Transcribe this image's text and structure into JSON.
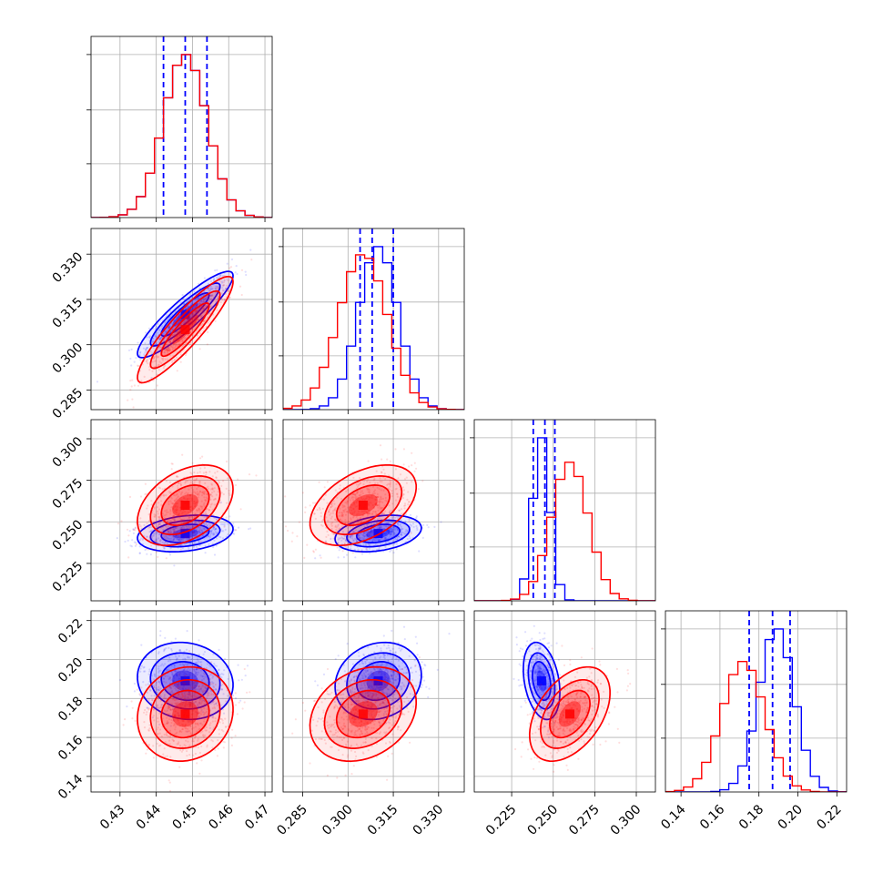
{
  "colors": {
    "blue": "#0000ff",
    "red": "#ff0000",
    "grid": "#b0b0b0"
  },
  "chart_data": {
    "type": "corner",
    "title": "",
    "grid": true,
    "parameters": [
      {
        "range": [
          0.422,
          0.472
        ],
        "ticks": [
          0.43,
          0.44,
          0.45,
          0.46,
          0.47
        ],
        "tick_labels": [
          "0.43",
          "0.44",
          "0.45",
          "0.46",
          "0.47"
        ]
      },
      {
        "range": [
          0.2785,
          0.3385
        ],
        "ticks": [
          0.285,
          0.3,
          0.315,
          0.33
        ],
        "tick_labels": [
          "0.285",
          "0.300",
          "0.315",
          "0.330"
        ]
      },
      {
        "range": [
          0.2025,
          0.3115
        ],
        "ticks": [
          0.225,
          0.25,
          0.275,
          0.3
        ],
        "tick_labels": [
          "0.225",
          "0.250",
          "0.275",
          "0.300"
        ]
      },
      {
        "range": [
          0.132,
          0.225
        ],
        "ticks": [
          0.14,
          0.16,
          0.18,
          0.2,
          0.22
        ],
        "tick_labels": [
          "0.14",
          "0.16",
          "0.18",
          "0.20",
          "0.22"
        ]
      }
    ],
    "series": [
      {
        "color": "#0000ff",
        "means": [
          0.448,
          0.31,
          0.243,
          0.189
        ],
        "sds": [
          0.006,
          0.0065,
          0.005,
          0.009
        ],
        "corr": [
          [
            1,
            0.9,
            0.25,
            -0.1
          ],
          [
            0.9,
            1,
            0.3,
            0.15
          ],
          [
            0.25,
            0.3,
            1,
            -0.3
          ],
          [
            -0.1,
            0.15,
            -0.3,
            1
          ]
        ],
        "quantiles": [
          [
            0.442,
            0.448,
            0.454
          ],
          [
            0.304,
            0.308,
            0.315
          ],
          [
            0.238,
            0.245,
            0.251
          ],
          [
            0.175,
            0.187,
            0.196
          ]
        ],
        "hist_peak": [
          1.0,
          1.0,
          1.0,
          1.0
        ]
      },
      {
        "color": "#ff0000",
        "means": [
          0.448,
          0.305,
          0.26,
          0.172
        ],
        "sds": [
          0.006,
          0.008,
          0.011,
          0.011
        ],
        "corr": [
          [
            1,
            0.9,
            0.4,
            0.1
          ],
          [
            0.9,
            1,
            0.45,
            0.25
          ],
          [
            0.4,
            0.45,
            1,
            0.45
          ],
          [
            0.1,
            0.25,
            0.45,
            1
          ]
        ],
        "quantiles": [],
        "hist_peak": [
          1.0,
          0.95,
          0.85,
          0.8
        ]
      }
    ]
  }
}
